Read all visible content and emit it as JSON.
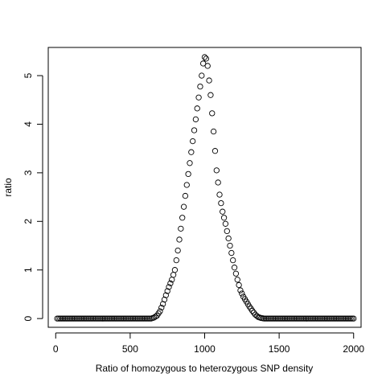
{
  "chart_data": {
    "type": "scatter",
    "title": "",
    "xlabel": "Ratio of homozygous to heterozygous SNP density",
    "ylabel": "ratio",
    "xlim": [
      -50,
      2050
    ],
    "ylim": [
      -0.18,
      5.58
    ],
    "x_ticks": [
      0,
      500,
      1000,
      1500,
      2000
    ],
    "x_tick_labels": [
      "0",
      "500",
      "1000",
      "1500",
      "2000"
    ],
    "y_ticks": [
      0,
      1,
      2,
      3,
      4,
      5
    ],
    "y_tick_labels": [
      "0",
      "1",
      "2",
      "3",
      "4",
      "5"
    ],
    "grid": false,
    "marker": "open-circle",
    "series_color": "#000000",
    "x_range": [
      10,
      2000
    ],
    "point_step": 10,
    "curve_profile": [
      [
        0,
        0
      ],
      [
        640,
        0
      ],
      [
        660,
        0.02
      ],
      [
        680,
        0.06
      ],
      [
        700,
        0.15
      ],
      [
        720,
        0.3
      ],
      [
        740,
        0.48
      ],
      [
        760,
        0.65
      ],
      [
        780,
        0.8
      ],
      [
        800,
        1.0
      ],
      [
        820,
        1.4
      ],
      [
        840,
        1.85
      ],
      [
        860,
        2.3
      ],
      [
        880,
        2.75
      ],
      [
        900,
        3.2
      ],
      [
        920,
        3.65
      ],
      [
        940,
        4.1
      ],
      [
        960,
        4.55
      ],
      [
        980,
        5.0
      ],
      [
        990,
        5.25
      ],
      [
        1000,
        5.38
      ],
      [
        1010,
        5.35
      ],
      [
        1020,
        5.2
      ],
      [
        1040,
        4.6
      ],
      [
        1060,
        3.85
      ],
      [
        1080,
        3.05
      ],
      [
        1100,
        2.55
      ],
      [
        1120,
        2.2
      ],
      [
        1140,
        1.95
      ],
      [
        1160,
        1.65
      ],
      [
        1180,
        1.35
      ],
      [
        1200,
        1.05
      ],
      [
        1220,
        0.8
      ],
      [
        1240,
        0.58
      ],
      [
        1260,
        0.45
      ],
      [
        1280,
        0.35
      ],
      [
        1300,
        0.25
      ],
      [
        1320,
        0.16
      ],
      [
        1340,
        0.08
      ],
      [
        1360,
        0.03
      ],
      [
        1380,
        0.01
      ],
      [
        1400,
        0
      ],
      [
        2000,
        0
      ]
    ]
  }
}
